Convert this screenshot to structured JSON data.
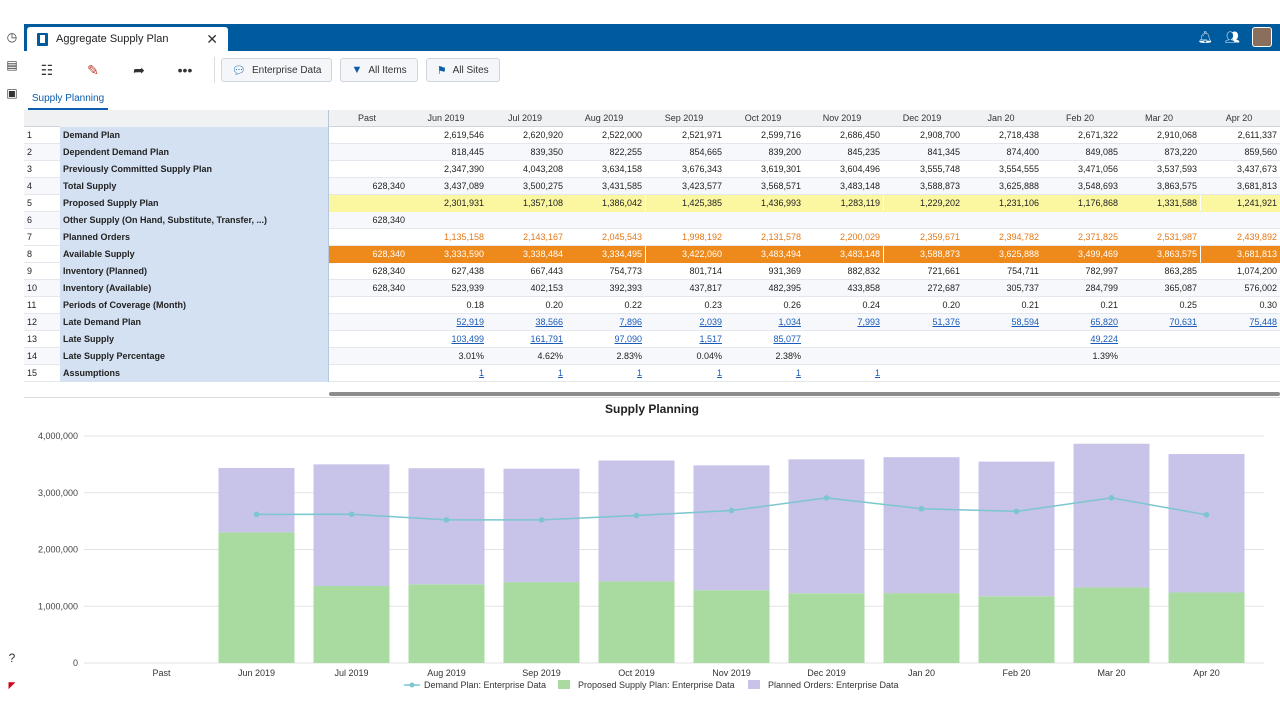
{
  "app": {
    "tab_title": "Aggregate Supply Plan",
    "close_glyph": "✕"
  },
  "toolbar": {
    "filters": [
      {
        "label": "Enterprise Data",
        "icon": "speech-bubble-icon"
      },
      {
        "label": "All Items",
        "icon": "funnel-icon"
      },
      {
        "label": "All Sites",
        "icon": "site-icon"
      }
    ]
  },
  "subtab": {
    "label": "Supply Planning"
  },
  "grid": {
    "columns": [
      "Past",
      "Jun 2019",
      "Jul 2019",
      "Aug 2019",
      "Sep 2019",
      "Oct 2019",
      "Nov 2019",
      "Dec 2019",
      "Jan 20",
      "Feb 20",
      "Mar 20",
      "Apr 20"
    ],
    "rows": [
      {
        "num": "1",
        "label": "Demand Plan",
        "style": "",
        "values": [
          "",
          "2,619,546",
          "2,620,920",
          "2,522,000",
          "2,521,971",
          "2,599,716",
          "2,686,450",
          "2,908,700",
          "2,718,438",
          "2,671,322",
          "2,910,068",
          "2,611,337"
        ]
      },
      {
        "num": "2",
        "label": "Dependent Demand Plan",
        "style": "alt",
        "values": [
          "",
          "818,445",
          "839,350",
          "822,255",
          "854,665",
          "839,200",
          "845,235",
          "841,345",
          "874,400",
          "849,085",
          "873,220",
          "859,560"
        ]
      },
      {
        "num": "3",
        "label": "Previously Committed Supply Plan",
        "style": "",
        "values": [
          "",
          "2,347,390",
          "4,043,208",
          "3,634,158",
          "3,676,343",
          "3,619,301",
          "3,604,496",
          "3,555,748",
          "3,554,555",
          "3,471,056",
          "3,537,593",
          "3,437,673"
        ]
      },
      {
        "num": "4",
        "label": "Total Supply",
        "style": "alt",
        "values": [
          "628,340",
          "3,437,089",
          "3,500,275",
          "3,431,585",
          "3,423,577",
          "3,568,571",
          "3,483,148",
          "3,588,873",
          "3,625,888",
          "3,548,693",
          "3,863,575",
          "3,681,813"
        ]
      },
      {
        "num": "5",
        "label": "Proposed Supply Plan",
        "style": "yellow",
        "values": [
          "",
          "2,301,931",
          "1,357,108",
          "1,386,042",
          "1,425,385",
          "1,436,993",
          "1,283,119",
          "1,229,202",
          "1,231,106",
          "1,176,868",
          "1,331,588",
          "1,241,921"
        ]
      },
      {
        "num": "6",
        "label": "Other Supply (On Hand, Substitute, Transfer, ...)",
        "style": "alt",
        "values": [
          "628,340",
          "",
          "",
          "",
          "",
          "",
          "",
          "",
          "",
          "",
          "",
          ""
        ]
      },
      {
        "num": "7",
        "label": "Planned Orders",
        "style": "orangetxt",
        "values": [
          "",
          "1,135,158",
          "2,143,167",
          "2,045,543",
          "1,998,192",
          "2,131,578",
          "2,200,029",
          "2,359,671",
          "2,394,782",
          "2,371,825",
          "2,531,987",
          "2,439,892"
        ]
      },
      {
        "num": "8",
        "label": "Available Supply",
        "style": "orange",
        "values": [
          "628,340",
          "3,333,590",
          "3,338,484",
          "3,334,495",
          "3,422,060",
          "3,483,494",
          "3,483,148",
          "3,588,873",
          "3,625,888",
          "3,499,469",
          "3,863,575",
          "3,681,813"
        ]
      },
      {
        "num": "9",
        "label": "Inventory (Planned)",
        "style": "",
        "values": [
          "628,340",
          "627,438",
          "667,443",
          "754,773",
          "801,714",
          "931,369",
          "882,832",
          "721,661",
          "754,711",
          "782,997",
          "863,285",
          "1,074,200"
        ]
      },
      {
        "num": "10",
        "label": "Inventory (Available)",
        "style": "alt",
        "values": [
          "628,340",
          "523,939",
          "402,153",
          "392,393",
          "437,817",
          "482,395",
          "433,858",
          "272,687",
          "305,737",
          "284,799",
          "365,087",
          "576,002"
        ]
      },
      {
        "num": "11",
        "label": "Periods of Coverage (Month)",
        "style": "",
        "values": [
          "",
          "0.18",
          "0.20",
          "0.22",
          "0.23",
          "0.26",
          "0.24",
          "0.20",
          "0.21",
          "0.21",
          "0.25",
          "0.30"
        ]
      },
      {
        "num": "12",
        "label": "Late Demand Plan",
        "style": "alt links",
        "values": [
          "",
          "52,919",
          "38,566",
          "7,896",
          "2,039",
          "1,034",
          "7,993",
          "51,376",
          "58,594",
          "65,820",
          "70,631",
          "75,448"
        ]
      },
      {
        "num": "13",
        "label": "Late Supply",
        "style": "links",
        "values": [
          "",
          "103,499",
          "161,791",
          "97,090",
          "1,517",
          "85,077",
          "",
          "",
          "",
          "49,224",
          "",
          ""
        ]
      },
      {
        "num": "14",
        "label": "Late Supply Percentage",
        "style": "alt",
        "values": [
          "",
          "3.01%",
          "4.62%",
          "2.83%",
          "0.04%",
          "2.38%",
          "",
          "",
          "",
          "1.39%",
          "",
          ""
        ]
      },
      {
        "num": "15",
        "label": "Assumptions",
        "style": "links",
        "values": [
          "",
          "1",
          "1",
          "1",
          "1",
          "1",
          "1",
          "",
          "",
          "",
          "",
          ""
        ]
      }
    ]
  },
  "chart_data": {
    "type": "bar",
    "title": "Supply Planning",
    "stacked": true,
    "categories": [
      "Past",
      "Jun 2019",
      "Jul 2019",
      "Aug 2019",
      "Sep 2019",
      "Oct 2019",
      "Nov 2019",
      "Dec 2019",
      "Jan 20",
      "Feb 20",
      "Mar 20",
      "Apr 20"
    ],
    "ylim": [
      0,
      4000000
    ],
    "yticks": [
      "0",
      "1,000,000",
      "2,000,000",
      "3,000,000",
      "4,000,000"
    ],
    "series": [
      {
        "name": "Proposed Supply Plan: Enterprise Data",
        "kind": "bar",
        "color": "#a9dba0",
        "values": [
          0,
          2301931,
          1357108,
          1386042,
          1425385,
          1436993,
          1283119,
          1229202,
          1231106,
          1176868,
          1331588,
          1241921
        ]
      },
      {
        "name": "Planned Orders: Enterprise Data",
        "kind": "bar",
        "color": "#c8c3e8",
        "values": [
          0,
          1135158,
          2143167,
          2045543,
          1998192,
          2131578,
          2200029,
          2359671,
          2394782,
          2371825,
          2531987,
          2439892
        ]
      },
      {
        "name": "Demand Plan: Enterprise Data",
        "kind": "line",
        "color": "#7cc6cf",
        "values": [
          null,
          2619546,
          2620920,
          2522000,
          2521971,
          2599716,
          2686450,
          2908700,
          2718438,
          2671322,
          2910068,
          2611337
        ]
      }
    ],
    "legend": [
      "Demand Plan: Enterprise Data",
      "Proposed Supply Plan: Enterprise Data",
      "Planned Orders: Enterprise Data"
    ],
    "legend_position": "bottom",
    "grid": true
  }
}
